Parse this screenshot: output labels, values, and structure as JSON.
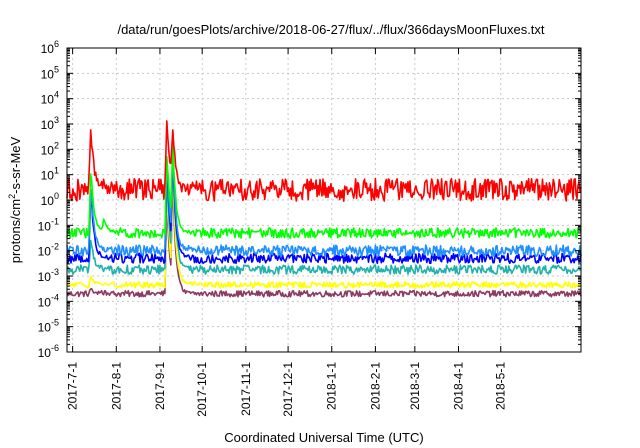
{
  "chart_data": {
    "type": "line",
    "title": "/data/run/goesPlots/archive/2018-06-27/flux/../flux/366daysMoonFluxes.txt",
    "xlabel": "Coordinated Universal Time (UTC)",
    "ylabel": "protons/cm²-s-sr-MeV",
    "ylabel_parts": {
      "pre": "protons/cm",
      "sup": "2",
      "post": "-s-sr-MeV"
    },
    "x_range": [
      "2017-06-27",
      "2018-06-27"
    ],
    "x_ticks": [
      "2017-7-1",
      "2017-8-1",
      "2017-9-1",
      "2017-10-1",
      "2017-11-1",
      "2017-12-1",
      "2018-1-1",
      "2018-2-1",
      "2018-3-1",
      "2018-4-1",
      "2018-5-1"
    ],
    "y_scale": "log",
    "y_range": [
      1e-06,
      1000000.0
    ],
    "y_ticks": [
      {
        "base": "10",
        "exp": "-6"
      },
      {
        "base": "10",
        "exp": "-5"
      },
      {
        "base": "10",
        "exp": "-4"
      },
      {
        "base": "10",
        "exp": "-3"
      },
      {
        "base": "10",
        "exp": "-2"
      },
      {
        "base": "10",
        "exp": "-1"
      },
      {
        "base": "10",
        "exp": "0"
      },
      {
        "base": "10",
        "exp": "1"
      },
      {
        "base": "10",
        "exp": "2"
      },
      {
        "base": "10",
        "exp": "3"
      },
      {
        "base": "10",
        "exp": "4"
      },
      {
        "base": "10",
        "exp": "5"
      },
      {
        "base": "10",
        "exp": "6"
      }
    ],
    "grid": true,
    "series": [
      {
        "color": "#8b3a62",
        "baseline_log10": -3.7,
        "noise": 0.12,
        "events": [
          {
            "date": "2017-07-14",
            "log10": -3.5
          },
          {
            "date": "2017-09-06",
            "log10": 0.0
          },
          {
            "date": "2017-09-10",
            "log10": 1.0
          }
        ]
      },
      {
        "color": "#ffff00",
        "baseline_log10": -3.35,
        "noise": 0.12,
        "events": [
          {
            "date": "2017-07-14",
            "log10": -3.0
          },
          {
            "date": "2017-09-06",
            "log10": 0.5
          },
          {
            "date": "2017-09-10",
            "log10": 1.5
          }
        ]
      },
      {
        "color": "#20b2aa",
        "baseline_log10": -2.75,
        "noise": 0.18,
        "events": [
          {
            "date": "2017-07-14",
            "log10": -1.5
          },
          {
            "date": "2017-09-06",
            "log10": 1.0
          },
          {
            "date": "2017-09-10",
            "log10": 2.0
          }
        ]
      },
      {
        "color": "#0000ff",
        "baseline_log10": -2.3,
        "noise": 0.2,
        "events": [
          {
            "date": "2017-07-14",
            "log10": 0.5
          },
          {
            "date": "2017-09-06",
            "log10": 1.5
          },
          {
            "date": "2017-09-10",
            "log10": 2.0
          }
        ]
      },
      {
        "color": "#1e90ff",
        "baseline_log10": -2.0,
        "noise": 0.22,
        "events": [
          {
            "date": "2017-07-14",
            "log10": 0.6
          },
          {
            "date": "2017-09-06",
            "log10": 1.8
          },
          {
            "date": "2017-09-10",
            "log10": 2.2
          }
        ]
      },
      {
        "color": "#00ff00",
        "baseline_log10": -1.3,
        "noise": 0.2,
        "events": [
          {
            "date": "2017-07-14",
            "log10": 1.2
          },
          {
            "date": "2017-07-23",
            "log10": -0.7
          },
          {
            "date": "2017-09-06",
            "log10": 2.0
          },
          {
            "date": "2017-09-10",
            "log10": 2.4
          }
        ]
      },
      {
        "color": "#ff0000",
        "baseline_log10": 0.4,
        "noise": 0.45,
        "events": [
          {
            "date": "2017-07-14",
            "log10": 2.8
          },
          {
            "date": "2017-09-06",
            "log10": 3.4
          },
          {
            "date": "2017-09-10",
            "log10": 3.0
          }
        ]
      }
    ]
  }
}
